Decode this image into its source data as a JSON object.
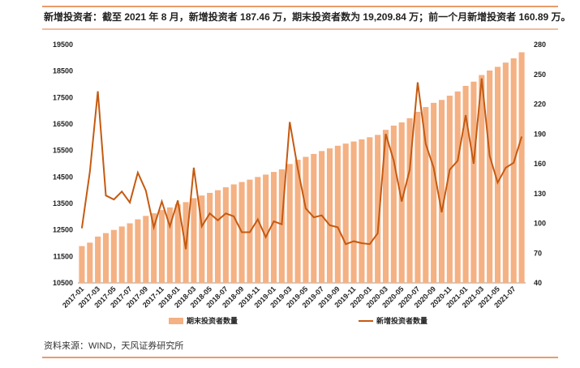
{
  "header": "新增投资者：截至 2021 年 8 月，新增投资者 187.46 万，期末投资者数为 19,209.84 万；前一个月新增投资者 160.89 万。",
  "source": "资料来源：WIND，天风证券研究所",
  "chart_data": {
    "type": "bar_line",
    "categories": [
      "2017-01",
      null,
      "2017-03",
      null,
      "2017-05",
      null,
      "2017-07",
      null,
      "2017-09",
      null,
      "2017-11",
      null,
      "2018-01",
      null,
      "2018-03",
      null,
      "2018-05",
      null,
      "2018-07",
      null,
      "2018-09",
      null,
      "2018-11",
      null,
      "2019-01",
      null,
      "2019-03",
      null,
      "2019-05",
      null,
      "2019-07",
      null,
      "2019-09",
      null,
      "2019-11",
      null,
      "2020-01",
      null,
      "2020-03",
      null,
      "2020-05",
      null,
      "2020-07",
      null,
      "2020-09",
      null,
      "2020-11",
      null,
      "2021-01",
      null,
      "2021-03",
      null,
      "2021-05",
      null,
      "2021-07",
      null
    ],
    "series": [
      {
        "name": "期末投资者数量",
        "type": "bar",
        "color": "#f4b183",
        "values": [
          11890,
          12020,
          12250,
          12380,
          12500,
          12630,
          12750,
          12900,
          13030,
          13130,
          13250,
          13350,
          13470,
          13550,
          13700,
          13800,
          13900,
          14000,
          14110,
          14220,
          14310,
          14400,
          14500,
          14590,
          14690,
          14790,
          14990,
          15150,
          15260,
          15370,
          15480,
          15580,
          15680,
          15760,
          15840,
          15920,
          16000,
          16090,
          16280,
          16440,
          16560,
          16720,
          16960,
          17140,
          17300,
          17410,
          17570,
          17730,
          17940,
          18100,
          18350,
          18520,
          18660,
          18820,
          18980,
          19209.84
        ]
      },
      {
        "name": "新增投资者数量",
        "type": "line",
        "axis": "y2",
        "color": "#c55a11",
        "values": [
          95,
          152,
          233,
          128,
          124,
          132,
          121,
          151,
          133,
          96,
          122,
          97,
          123,
          74,
          156,
          97,
          110,
          103,
          110,
          107,
          91,
          91,
          104,
          86,
          102,
          99,
          202,
          155,
          115,
          106,
          108,
          98,
          96,
          79,
          82,
          80,
          79,
          90,
          190,
          163,
          122,
          154,
          242,
          180,
          156,
          111,
          154,
          163,
          209,
          160,
          246,
          168,
          141,
          156,
          160.89,
          187.46
        ]
      }
    ],
    "ylim": [
      10500,
      19500
    ],
    "yticks": [
      10500,
      11500,
      12500,
      13500,
      14500,
      15500,
      16500,
      17500,
      18500,
      19500
    ],
    "y2lim": [
      40,
      280
    ],
    "y2ticks": [
      40,
      70,
      100,
      130,
      160,
      190,
      220,
      250,
      280
    ],
    "grid": false
  }
}
